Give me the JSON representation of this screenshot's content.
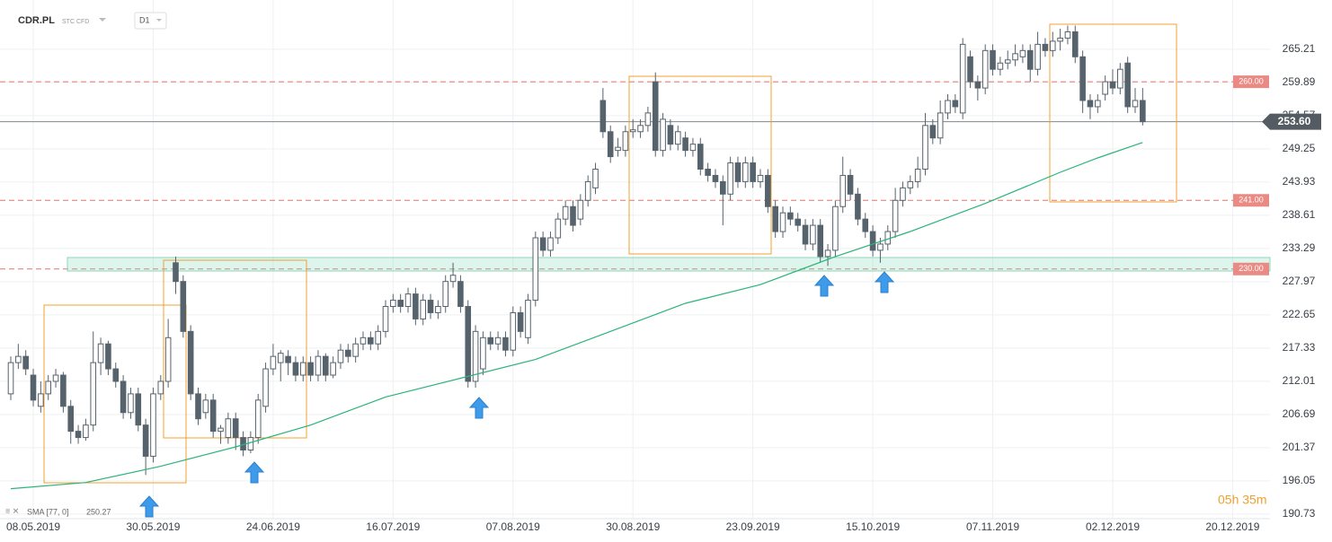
{
  "header": {
    "symbol": "CDR.PL",
    "market": "STC CFD",
    "timeframe": "D1"
  },
  "countdown": "05h 35m",
  "chart_data": {
    "type": "candlestick",
    "categories": [
      null,
      null,
      null,
      "08.05.2019",
      null,
      null,
      null,
      null,
      null,
      null,
      null,
      null,
      null,
      null,
      null,
      null,
      null,
      null,
      null,
      "30.05.2019",
      null,
      null,
      null,
      null,
      null,
      null,
      null,
      null,
      null,
      null,
      null,
      null,
      null,
      null,
      null,
      "24.06.2019",
      null,
      null,
      null,
      null,
      null,
      null,
      null,
      null,
      null,
      null,
      null,
      null,
      null,
      null,
      null,
      "16.07.2019",
      null,
      null,
      null,
      null,
      null,
      null,
      null,
      null,
      null,
      null,
      null,
      null,
      null,
      null,
      null,
      "07.08.2019",
      null,
      null,
      null,
      null,
      null,
      null,
      null,
      null,
      null,
      null,
      null,
      null,
      null,
      null,
      null,
      "30.08.2019",
      null,
      null,
      null,
      null,
      null,
      null,
      null,
      null,
      null,
      null,
      null,
      null,
      null,
      null,
      null,
      "23.09.2019",
      null,
      null,
      null,
      null,
      null,
      null,
      null,
      null,
      null,
      null,
      null,
      null,
      null,
      null,
      null,
      "15.10.2019",
      null,
      null,
      null,
      null,
      null,
      null,
      null,
      null,
      null,
      null,
      null,
      null,
      null,
      null,
      null,
      "07.11.2019",
      null,
      null,
      null,
      null,
      null,
      null,
      null,
      null,
      null,
      null,
      null,
      null,
      null,
      null,
      null,
      "02.12.2019",
      null,
      null,
      null,
      null,
      null,
      null,
      null,
      null,
      null,
      null,
      null,
      null,
      null,
      null,
      null,
      "20.12.2019"
    ],
    "open": [
      210,
      215,
      216,
      213,
      208,
      210,
      212,
      213,
      208,
      204,
      203,
      205,
      215,
      218,
      214,
      212,
      207,
      210,
      205,
      200,
      210,
      212,
      231,
      228,
      220,
      210,
      207,
      209,
      204,
      203,
      206,
      203,
      201,
      203,
      208,
      214,
      215,
      216,
      215,
      213,
      215,
      213,
      216,
      213,
      215,
      217,
      216,
      218,
      219,
      218,
      220,
      224,
      225,
      224,
      226,
      222,
      225,
      223,
      224,
      228,
      228,
      224,
      212,
      214,
      219,
      218,
      219,
      217,
      223,
      219,
      225,
      235,
      233,
      235,
      238,
      240,
      238,
      241,
      243,
      257,
      252,
      249,
      249,
      252,
      252,
      253,
      260,
      249,
      253,
      250,
      251,
      249,
      250,
      246,
      245,
      244,
      242,
      247,
      244,
      247,
      244,
      245,
      240,
      236,
      239,
      238,
      237,
      234,
      237,
      232,
      233,
      240,
      245,
      242,
      238,
      236,
      233,
      234,
      236,
      241,
      243,
      244,
      246,
      253,
      251,
      255,
      257,
      255,
      264,
      260,
      259,
      265,
      262,
      263,
      263.5,
      264,
      265,
      262,
      266,
      265,
      266.5,
      267,
      268,
      264,
      257,
      256,
      258,
      260,
      259,
      263,
      256,
      257,
      null,
      null,
      null,
      null,
      null,
      null,
      null,
      null,
      null,
      null,
      null,
      null
    ],
    "high": [
      216,
      218,
      217,
      214,
      212,
      213,
      214,
      213.5,
      209,
      205,
      206,
      220,
      219,
      218.5,
      215,
      213,
      211,
      211,
      206,
      211,
      213,
      222,
      232,
      229,
      221,
      211,
      210,
      210,
      205,
      207,
      207,
      204,
      204,
      210,
      215,
      218,
      217,
      217,
      216,
      216,
      216,
      217,
      216.5,
      216,
      218,
      218,
      219,
      220,
      220,
      221,
      225,
      226,
      226,
      227,
      227,
      226,
      226,
      225,
      229,
      231,
      229,
      225,
      221,
      220,
      220,
      220,
      220,
      224,
      224,
      226,
      236,
      236,
      236,
      239,
      241,
      241,
      242,
      245,
      247,
      259,
      253,
      251,
      253,
      254,
      254,
      256,
      261.5,
      255,
      254,
      253,
      252,
      251,
      251,
      247,
      246,
      245,
      248,
      248,
      248,
      248,
      246,
      246,
      241,
      240,
      240,
      239,
      238,
      238,
      238,
      234,
      241,
      248,
      246,
      243,
      239,
      237,
      235,
      237,
      243,
      244,
      245,
      248,
      255,
      254,
      257,
      258,
      258,
      267,
      265,
      261,
      266,
      266,
      264,
      265,
      266,
      266,
      266,
      268,
      267,
      268,
      268.5,
      269,
      269,
      265,
      258,
      258,
      261,
      262,
      263,
      264,
      259,
      259,
      null,
      null,
      null,
      null,
      null,
      null,
      null,
      null,
      null,
      null,
      null,
      null
    ],
    "low": [
      209,
      214,
      213,
      208,
      207,
      209,
      211,
      207,
      202,
      202,
      202.5,
      204,
      213,
      213,
      211,
      206,
      206,
      204,
      197,
      199,
      209,
      211,
      226,
      219,
      209,
      205,
      206,
      203,
      202,
      202,
      201,
      200,
      200.5,
      202,
      207,
      213,
      212,
      213,
      212,
      212,
      212,
      212,
      212,
      212.5,
      214,
      215,
      215,
      217,
      217,
      217,
      219,
      223,
      223,
      223,
      221,
      221,
      222,
      222,
      223,
      227,
      223,
      211,
      211,
      213,
      217,
      217,
      216,
      216,
      219,
      218,
      224,
      232,
      232,
      234,
      237,
      236,
      237,
      240,
      242,
      251,
      247,
      248,
      248,
      251,
      251,
      252,
      248,
      248,
      249,
      249,
      248,
      248,
      245,
      244,
      243,
      237,
      241,
      243,
      243,
      243,
      243,
      239,
      235,
      235,
      237,
      236,
      233,
      233,
      231,
      230.5,
      232,
      239,
      241,
      237,
      235,
      232,
      231,
      233,
      235,
      240,
      242,
      243,
      245,
      250,
      250,
      254,
      255,
      254,
      259,
      257,
      258,
      261,
      261,
      262,
      262.5,
      263,
      260,
      261,
      264,
      264,
      265,
      266,
      263,
      255,
      254,
      255,
      257,
      258,
      258,
      255,
      255,
      253,
      null,
      null,
      null,
      null,
      null,
      null,
      null,
      null,
      null,
      null,
      null,
      null
    ],
    "close": [
      215,
      216,
      214,
      209,
      210,
      212,
      213,
      208,
      204,
      203,
      205,
      215,
      218,
      214,
      212,
      207,
      210,
      205,
      200,
      210,
      212,
      219,
      228,
      220,
      210,
      206,
      209,
      204,
      204.5,
      206,
      203,
      201,
      203,
      209,
      214,
      216,
      216.5,
      215,
      213,
      215,
      213,
      216,
      213,
      215,
      217,
      216,
      218,
      219,
      218,
      220,
      224,
      225,
      224,
      226,
      222,
      225,
      223,
      224,
      228,
      229,
      224,
      212,
      220,
      219,
      218,
      219,
      217,
      223,
      220,
      225,
      235,
      233,
      235,
      238,
      240,
      237,
      241,
      244,
      246,
      252,
      248,
      249.5,
      252,
      252.3,
      253,
      255,
      249,
      254,
      250,
      252,
      249,
      250,
      246,
      245,
      244,
      242,
      247,
      244,
      247,
      244,
      245,
      240,
      236,
      239,
      238,
      237,
      234,
      237,
      232,
      233,
      240,
      245,
      242,
      238,
      236,
      233,
      234,
      236,
      241,
      243,
      244,
      246,
      253,
      251,
      255,
      257,
      256,
      266,
      260,
      259,
      265,
      262,
      263,
      263.5,
      264.5,
      265,
      262,
      266,
      265,
      266.5,
      267,
      268,
      264,
      257,
      256,
      257,
      260,
      259,
      262,
      256,
      257,
      253.6,
      null,
      null,
      null,
      null,
      null,
      null,
      null,
      null,
      null,
      null,
      null,
      null
    ],
    "sma": {
      "label": "SMA [77, 0]",
      "color": "#2bb37a",
      "x": [
        0,
        10,
        20,
        30,
        40,
        50,
        60,
        70,
        80,
        90,
        100,
        110,
        120,
        130,
        140,
        145,
        151
      ],
      "values": [
        194.8,
        195.8,
        198.4,
        201.5,
        205.0,
        209.5,
        212.5,
        215.5,
        220.0,
        224.5,
        227.5,
        232.0,
        236.0,
        240.5,
        245.5,
        247.8,
        250.27
      ]
    },
    "levels": [
      {
        "value": 260,
        "label": "260.00"
      },
      {
        "value": 241,
        "label": "241.00"
      },
      {
        "value": 230,
        "label": "230.00"
      }
    ],
    "last_price": {
      "value": 253.6,
      "label": "253.60"
    },
    "ylim": [
      190.0,
      273.1
    ],
    "yticks": [
      265.21,
      259.89,
      254.57,
      249.25,
      243.93,
      238.61,
      233.29,
      227.97,
      222.65,
      217.33,
      212.01,
      206.69,
      201.37,
      196.05,
      190.73
    ],
    "grid": true,
    "up_color": "#ffffff",
    "down_color": "#56626c"
  }
}
